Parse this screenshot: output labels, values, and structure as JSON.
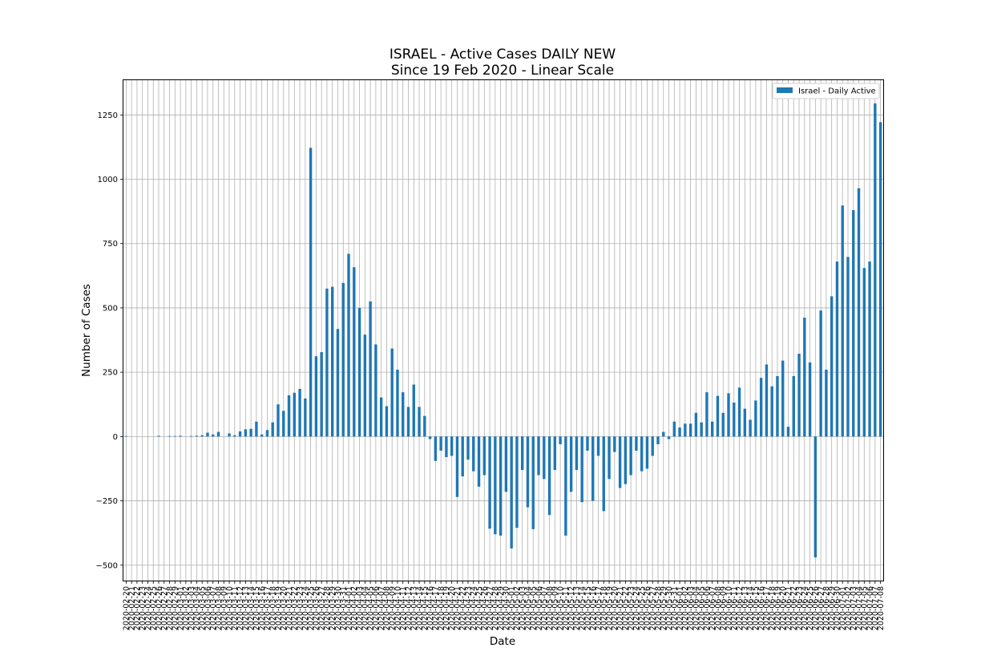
{
  "chart_data": {
    "type": "bar",
    "title": "ISRAEL - Active Cases DAILY NEW",
    "subtitle": "Since 19 Feb 2020 - Linear Scale",
    "xlabel": "Date",
    "ylabel": "Number of Cases",
    "ylim": [
      -560,
      1385
    ],
    "yticks": [
      -500,
      -250,
      0,
      250,
      500,
      750,
      1000,
      1250
    ],
    "grid": true,
    "legend_position": "top-right",
    "bar_color": "#1f77b4",
    "x_start_date": "2020-02-20",
    "series": [
      {
        "name": "Israel - Daily Active",
        "values": [
          2,
          0,
          0,
          0,
          0,
          0,
          3,
          0,
          2,
          2,
          3,
          0,
          2,
          3,
          5,
          15,
          8,
          18,
          0,
          12,
          5,
          20,
          28,
          30,
          58,
          8,
          25,
          55,
          125,
          100,
          160,
          170,
          185,
          148,
          1122,
          312,
          328,
          575,
          582,
          418,
          597,
          710,
          658,
          500,
          396,
          525,
          358,
          152,
          118,
          342,
          260,
          172,
          115,
          202,
          115,
          80,
          -10,
          -95,
          -55,
          -80,
          -75,
          -235,
          -155,
          -90,
          -135,
          -195,
          -150,
          -358,
          -380,
          -385,
          -215,
          -435,
          -355,
          -130,
          -275,
          -360,
          -150,
          -165,
          -305,
          -130,
          -30,
          -385,
          -215,
          -130,
          -255,
          -55,
          -250,
          -75,
          -290,
          -165,
          -60,
          -200,
          -185,
          -150,
          -55,
          -135,
          -125,
          -75,
          -30,
          18,
          -10,
          58,
          35,
          50,
          50,
          92,
          55,
          172,
          58,
          158,
          92,
          168,
          132,
          190,
          108,
          65,
          140,
          228,
          280,
          195,
          235,
          295,
          38,
          235,
          322,
          462,
          288,
          -470,
          490,
          260,
          545,
          680,
          898,
          698,
          880,
          965,
          655,
          680,
          1295,
          1222
        ]
      }
    ]
  }
}
